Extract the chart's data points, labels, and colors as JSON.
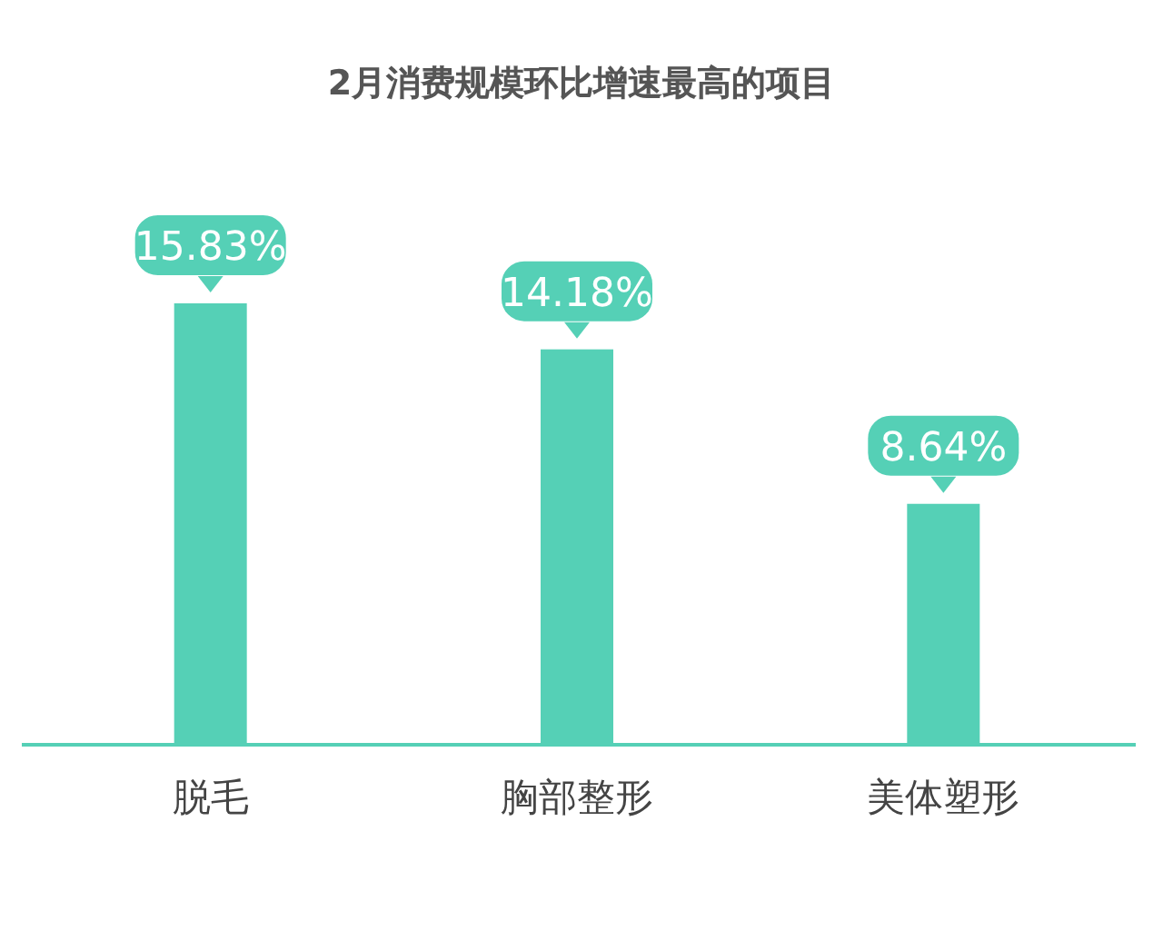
{
  "chart_data": {
    "type": "bar",
    "title": "2月消费规模环比增速最高的项目",
    "categories": [
      "脱毛",
      "胸部整形",
      "美体塑形"
    ],
    "values": [
      15.83,
      14.18,
      8.64
    ],
    "color": "#55d0b6",
    "value_labels": [
      "15.83%",
      "14.18%",
      "8.64%"
    ]
  }
}
